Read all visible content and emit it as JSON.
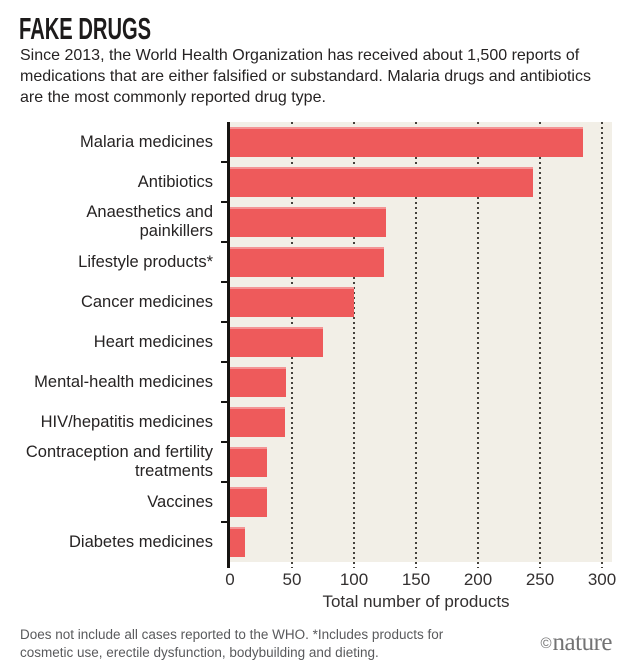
{
  "header": {
    "title": "FAKE DRUGS",
    "subtitle": "Since 2013, the World Health Organization has received about 1,500 reports of medications that are either falsified or substandard. Malaria drugs and antibiotics are the most commonly reported drug type."
  },
  "chart_data": {
    "type": "bar",
    "orientation": "horizontal",
    "categories": [
      "Malaria medicines",
      "Antibiotics",
      "Anaesthetics and painkillers",
      "Lifestyle products*",
      "Cancer medicines",
      "Heart medicines",
      "Mental-health medicines",
      "HIV/hepatitis medicines",
      "Contraception and fertility treatments",
      "Vaccines",
      "Diabetes medicines"
    ],
    "values": [
      285,
      244,
      126,
      124,
      100,
      75,
      45,
      44,
      30,
      30,
      12
    ],
    "xlabel": "Total number of products",
    "xlim": [
      0,
      300
    ],
    "xticks": [
      0,
      50,
      100,
      150,
      200,
      250,
      300
    ],
    "grid": "vertical-dotted",
    "bar_color": "#ee5a5b",
    "plot_bg": "#f2efe7",
    "axis_color": "#161412",
    "grid_dot_color": "#45423c"
  },
  "footer": {
    "note": "Does not include all cases reported to the WHO. *Includes products for cosmetic use, erectile dysfunction, bodybuilding and dieting.",
    "copyright": "©",
    "brand": "nature"
  }
}
